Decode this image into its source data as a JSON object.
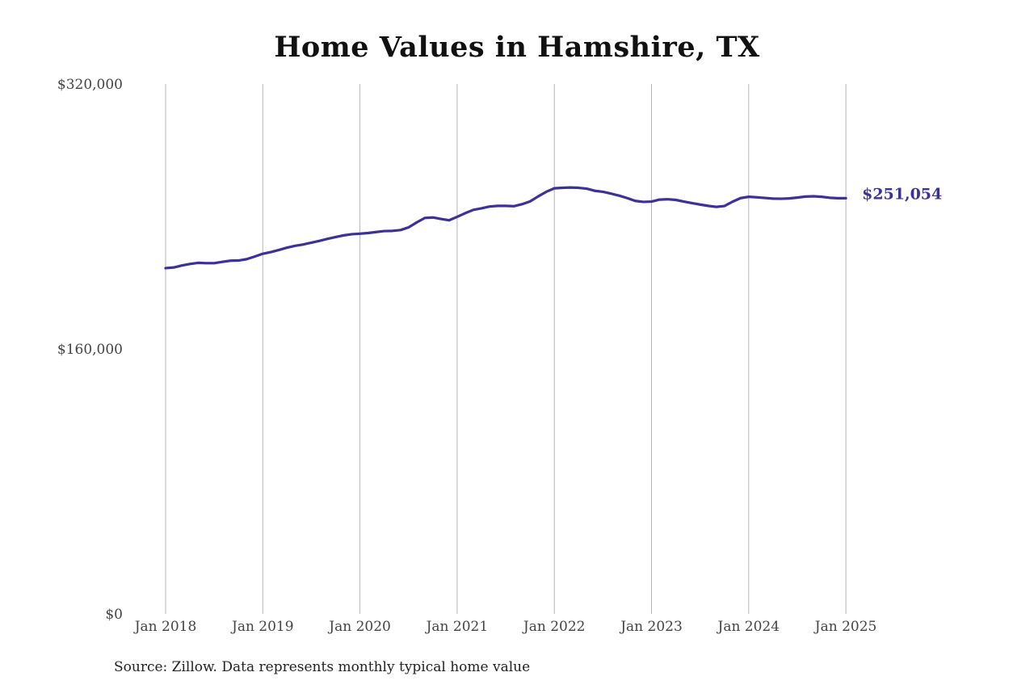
{
  "chart_data": {
    "type": "line",
    "title": "Home Values in Hamshire, TX",
    "xlabel": "",
    "ylabel": "",
    "ylim": [
      0,
      320000
    ],
    "yticks": [
      {
        "value": 0,
        "label": "$0"
      },
      {
        "value": 160000,
        "label": "$160,000"
      },
      {
        "value": 320000,
        "label": "$320,000"
      }
    ],
    "x_start": "2018-01",
    "xticks": [
      {
        "month_index": 0,
        "label": "Jan 2018"
      },
      {
        "month_index": 12,
        "label": "Jan 2019"
      },
      {
        "month_index": 24,
        "label": "Jan 2020"
      },
      {
        "month_index": 36,
        "label": "Jan 2021"
      },
      {
        "month_index": 48,
        "label": "Jan 2022"
      },
      {
        "month_index": 60,
        "label": "Jan 2023"
      },
      {
        "month_index": 72,
        "label": "Jan 2024"
      },
      {
        "month_index": 84,
        "label": "Jan 2025"
      }
    ],
    "vertical_grid": true,
    "series": [
      {
        "color": "#3b3196",
        "end_label": "$251,054",
        "values": [
          208800,
          209200,
          210400,
          211300,
          212000,
          211800,
          211800,
          212600,
          213300,
          213400,
          214200,
          215800,
          217500,
          218500,
          219800,
          221200,
          222300,
          223100,
          224200,
          225300,
          226500,
          227600,
          228600,
          229300,
          229600,
          230000,
          230600,
          231200,
          231300,
          231800,
          233400,
          236400,
          239100,
          239400,
          238500,
          237700,
          239800,
          242000,
          244000,
          244900,
          246000,
          246400,
          246400,
          246200,
          247400,
          249100,
          252100,
          254900,
          257000,
          257300,
          257500,
          257300,
          256800,
          255500,
          254900,
          253800,
          252600,
          251100,
          249400,
          248800,
          249000,
          250200,
          250400,
          250000,
          249000,
          248100,
          247200,
          246400,
          245800,
          246300,
          248900,
          251100,
          251900,
          251600,
          251200,
          250800,
          250700,
          250900,
          251400,
          252000,
          252200,
          251900,
          251300,
          251054,
          251054
        ]
      }
    ]
  },
  "source": "Source: Zillow. Data represents monthly typical home value"
}
